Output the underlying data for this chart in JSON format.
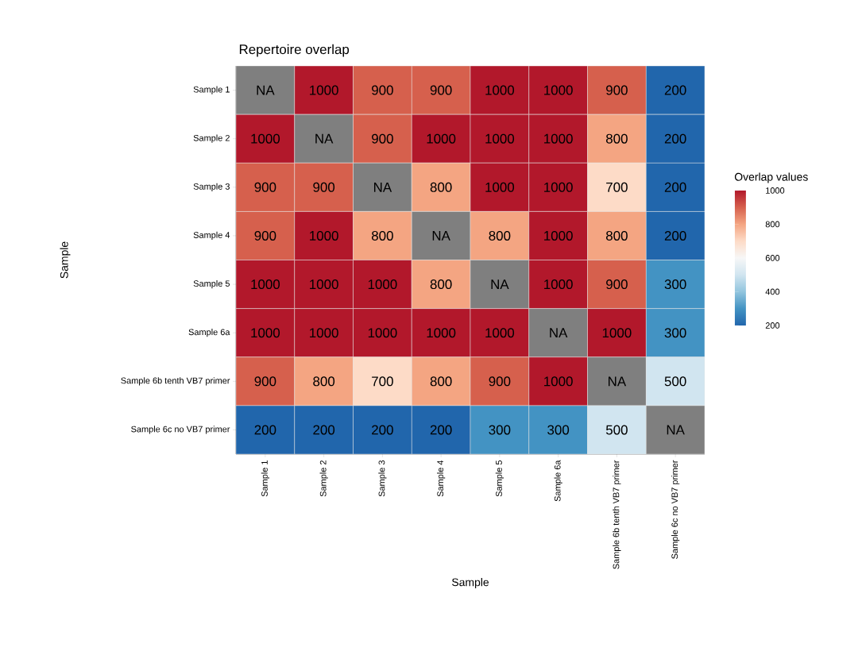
{
  "chart_data": {
    "type": "heatmap",
    "title": "Repertoire overlap",
    "xlabel": "Sample",
    "ylabel": "Sample",
    "clabel": "Overlap values",
    "categories": [
      "Sample 1",
      "Sample 2",
      "Sample 3",
      "Sample 4",
      "Sample 5",
      "Sample 6a",
      "Sample 6b tenth VB7 primer",
      "Sample 6c no VB7 primer"
    ],
    "y_categories": [
      "Sample 1",
      "Sample 2",
      "Sample 3",
      "Sample 4",
      "Sample 5",
      "Sample 6a",
      "Sample 6b tenth VB7 primer",
      "Sample 6c no VB7 primer"
    ],
    "cells": [
      [
        null,
        1000,
        900,
        900,
        1000,
        1000,
        900,
        200
      ],
      [
        1000,
        null,
        900,
        1000,
        1000,
        1000,
        800,
        200
      ],
      [
        900,
        900,
        null,
        800,
        1000,
        1000,
        700,
        200
      ],
      [
        900,
        1000,
        800,
        null,
        800,
        1000,
        800,
        200
      ],
      [
        1000,
        1000,
        1000,
        800,
        null,
        1000,
        900,
        300
      ],
      [
        1000,
        1000,
        1000,
        1000,
        1000,
        null,
        1000,
        300
      ],
      [
        900,
        800,
        700,
        800,
        900,
        1000,
        null,
        500
      ],
      [
        200,
        200,
        200,
        200,
        300,
        300,
        500,
        null
      ]
    ],
    "cell_labels": [
      [
        "NA",
        "1000",
        "900",
        "900",
        "1000",
        "1000",
        "900",
        "200"
      ],
      [
        "1000",
        "NA",
        "900",
        "1000",
        "1000",
        "1000",
        "800",
        "200"
      ],
      [
        "900",
        "900",
        "NA",
        "800",
        "1000",
        "1000",
        "700",
        "200"
      ],
      [
        "900",
        "1000",
        "800",
        "NA",
        "800",
        "1000",
        "800",
        "200"
      ],
      [
        "1000",
        "1000",
        "1000",
        "800",
        "NA",
        "1000",
        "900",
        "300"
      ],
      [
        "1000",
        "1000",
        "1000",
        "1000",
        "1000",
        "NA",
        "1000",
        "300"
      ],
      [
        "900",
        "800",
        "700",
        "800",
        "900",
        "1000",
        "NA",
        "500"
      ],
      [
        "200",
        "200",
        "200",
        "200",
        "300",
        "300",
        "500",
        "NA"
      ]
    ],
    "data_labels": true,
    "clim": [
      200,
      1000
    ],
    "cticks": [
      200,
      400,
      600,
      800,
      1000
    ]
  }
}
